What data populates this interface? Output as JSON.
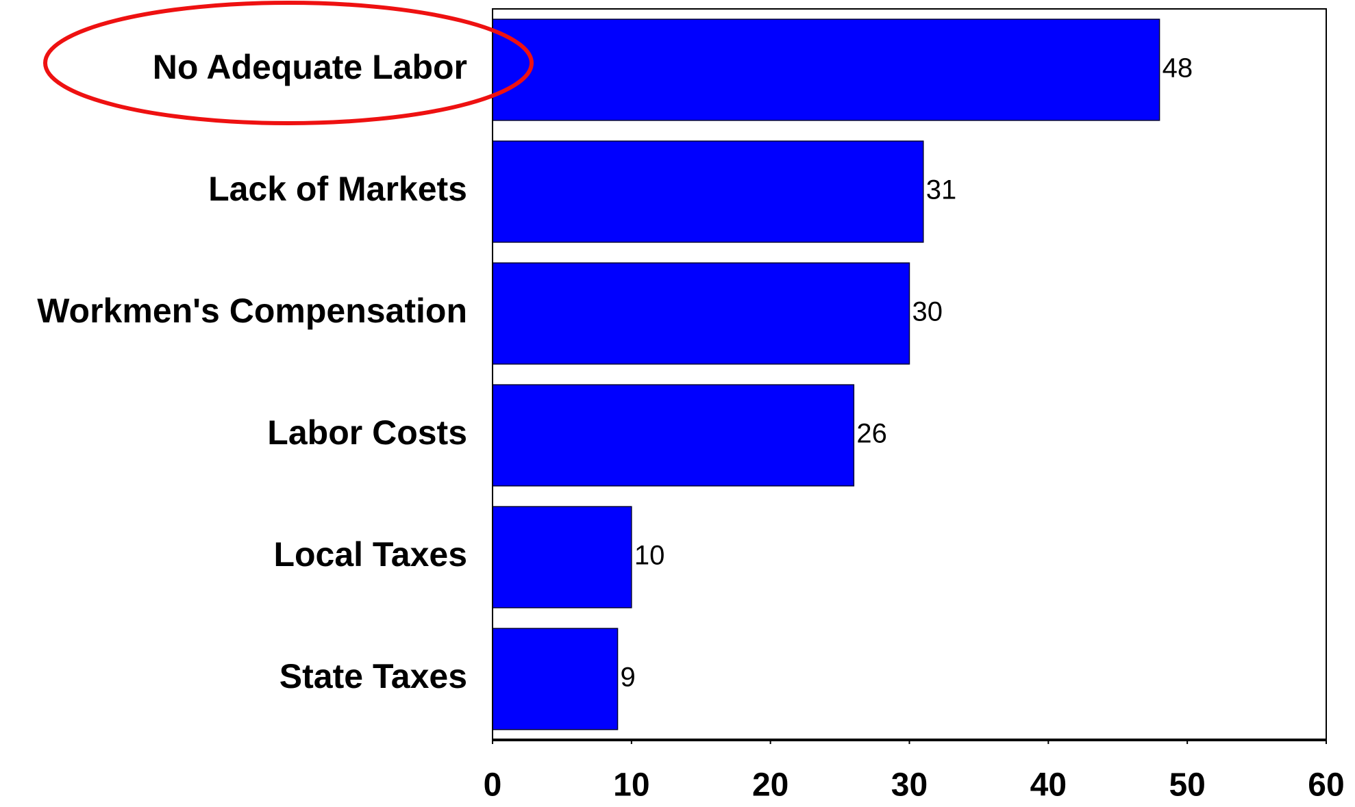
{
  "chart_data": {
    "type": "bar",
    "orientation": "horizontal",
    "categories": [
      "No Adequate Labor",
      "Lack of Markets",
      "Workmen's Compensation",
      "Labor Costs",
      "Local Taxes",
      "State Taxes"
    ],
    "values": [
      48,
      31,
      30,
      26,
      10,
      9
    ],
    "color": "#0000ff",
    "xlim": [
      0,
      60
    ],
    "xticks": [
      0,
      10,
      20,
      30,
      40,
      50,
      60
    ],
    "grid": false
  }
}
